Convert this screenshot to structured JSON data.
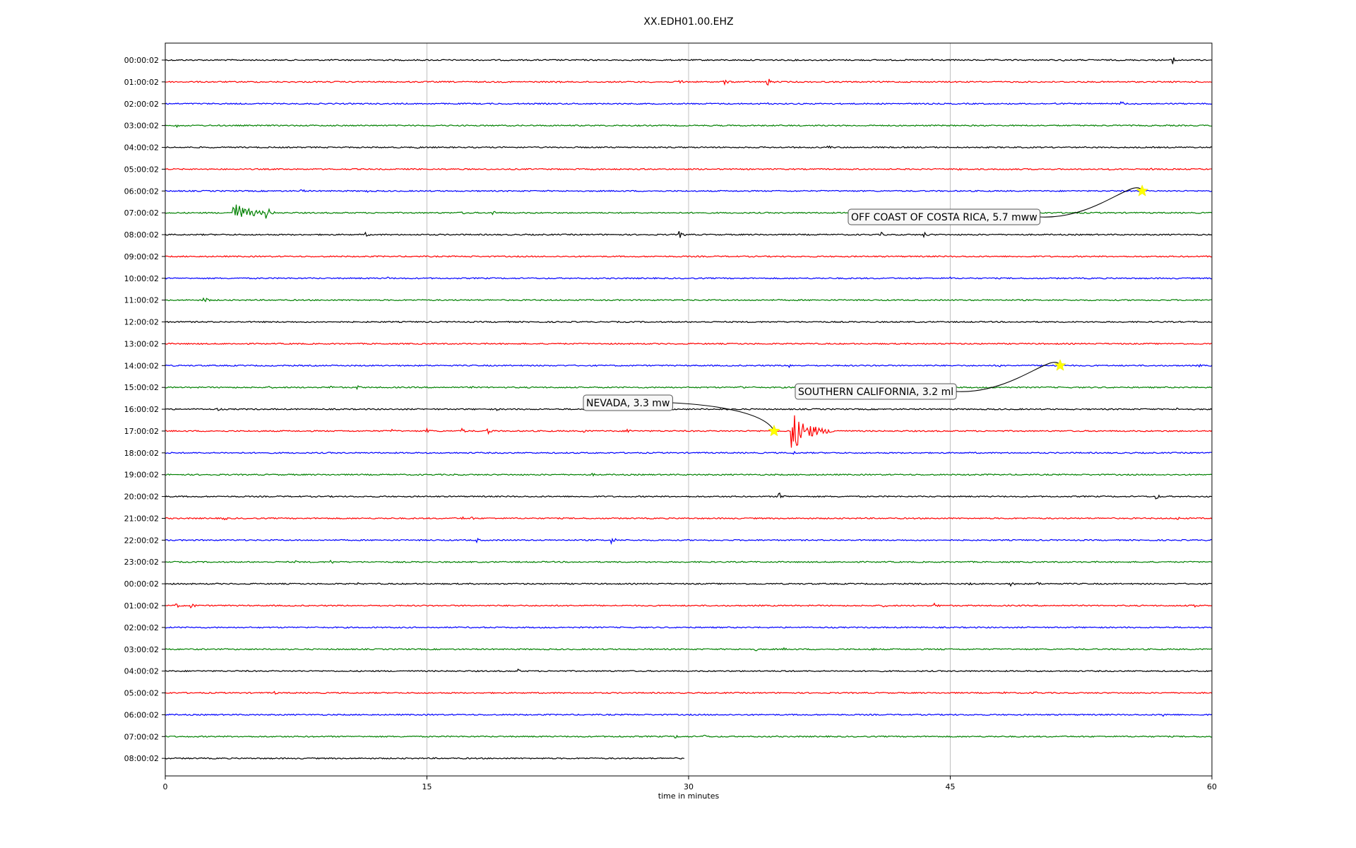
{
  "chart_data": {
    "type": "line",
    "title": "XX.EDH01.00.EHZ",
    "xlabel": "time in minutes",
    "xlim": [
      0,
      60
    ],
    "xticks": [
      0,
      15,
      30,
      45,
      60
    ],
    "grid": "vertical",
    "colors": [
      "#000000",
      "#ff0000",
      "#0000ff",
      "#008000"
    ],
    "rows": [
      {
        "label": "00:00:02",
        "color": "#000000",
        "end": 60,
        "bursts": [
          [
            35.2,
            1
          ],
          [
            44.0,
            3
          ],
          [
            51.5,
            2
          ],
          [
            57.8,
            6
          ]
        ]
      },
      {
        "label": "01:00:02",
        "color": "#ff0000",
        "end": 60,
        "bursts": [
          [
            22.4,
            3
          ],
          [
            29.5,
            4
          ],
          [
            32.0,
            6
          ],
          [
            34.5,
            7
          ],
          [
            29.8,
            2
          ]
        ]
      },
      {
        "label": "02:00:02",
        "color": "#0000ff",
        "end": 60,
        "bursts": [
          [
            34.5,
            2
          ],
          [
            51.0,
            2
          ],
          [
            54.8,
            4
          ]
        ]
      },
      {
        "label": "03:00:02",
        "color": "#008000",
        "end": 60,
        "bursts": [
          [
            0.6,
            3
          ]
        ]
      },
      {
        "label": "04:00:02",
        "color": "#000000",
        "end": 60,
        "bursts": [
          [
            14.5,
            2
          ],
          [
            38.0,
            3
          ]
        ]
      },
      {
        "label": "05:00:02",
        "color": "#ff0000",
        "end": 60,
        "bursts": [
          [
            14.2,
            2
          ],
          [
            45.5,
            3
          ],
          [
            48.5,
            2
          ],
          [
            54.0,
            2
          ],
          [
            56.5,
            3
          ]
        ]
      },
      {
        "label": "06:00:02",
        "color": "#0000ff",
        "end": 60,
        "bursts": [
          [
            7.8,
            3
          ],
          [
            11.5,
            3
          ],
          [
            56.0,
            3
          ]
        ]
      },
      {
        "label": "07:00:02",
        "color": "#008000",
        "end": 60,
        "bursts": [
          [
            3.9,
            16
          ],
          [
            5.8,
            10
          ],
          [
            17.0,
            3
          ],
          [
            18.8,
            4
          ]
        ]
      },
      {
        "label": "08:00:02",
        "color": "#000000",
        "end": 60,
        "bursts": [
          [
            11.5,
            3
          ],
          [
            29.5,
            5
          ],
          [
            34.0,
            2
          ],
          [
            41.0,
            4
          ],
          [
            43.5,
            4
          ]
        ]
      },
      {
        "label": "09:00:02",
        "color": "#ff0000",
        "end": 60,
        "bursts": [
          [
            17.5,
            2
          ],
          [
            49.0,
            2
          ]
        ]
      },
      {
        "label": "10:00:02",
        "color": "#0000ff",
        "end": 60,
        "bursts": [
          [
            12.8,
            2
          ],
          [
            45.0,
            2
          ]
        ]
      },
      {
        "label": "11:00:02",
        "color": "#008000",
        "end": 60,
        "bursts": [
          [
            2.2,
            6
          ],
          [
            35.0,
            2
          ]
        ]
      },
      {
        "label": "12:00:02",
        "color": "#000000",
        "end": 60,
        "bursts": []
      },
      {
        "label": "13:00:02",
        "color": "#ff0000",
        "end": 60,
        "bursts": []
      },
      {
        "label": "14:00:02",
        "color": "#0000ff",
        "end": 60,
        "bursts": [
          [
            35.8,
            3
          ],
          [
            40.5,
            3
          ],
          [
            47.8,
            3
          ],
          [
            51.0,
            3
          ],
          [
            59.3,
            2
          ]
        ]
      },
      {
        "label": "15:00:02",
        "color": "#008000",
        "end": 60,
        "bursts": [
          [
            6.0,
            2
          ],
          [
            9.5,
            3
          ],
          [
            11.0,
            3
          ],
          [
            17.5,
            2
          ],
          [
            33.0,
            3
          ]
        ]
      },
      {
        "label": "16:00:02",
        "color": "#000000",
        "end": 60,
        "bursts": [
          [
            3.0,
            3
          ],
          [
            19.0,
            2
          ],
          [
            58.0,
            2
          ]
        ]
      },
      {
        "label": "17:00:02",
        "color": "#ff0000",
        "end": 60,
        "bursts": [
          [
            13.0,
            3
          ],
          [
            15.0,
            4
          ],
          [
            17.0,
            4
          ],
          [
            18.5,
            5
          ],
          [
            24.0,
            3
          ],
          [
            26.5,
            4
          ],
          [
            35.9,
            30
          ]
        ]
      },
      {
        "label": "18:00:02",
        "color": "#0000ff",
        "end": 60,
        "bursts": [
          [
            36.0,
            3
          ]
        ]
      },
      {
        "label": "19:00:02",
        "color": "#008000",
        "end": 60,
        "bursts": [
          [
            16.5,
            2
          ],
          [
            24.5,
            2
          ],
          [
            46.0,
            2
          ]
        ]
      },
      {
        "label": "20:00:02",
        "color": "#000000",
        "end": 60,
        "bursts": [
          [
            35.2,
            6
          ],
          [
            56.8,
            4
          ]
        ]
      },
      {
        "label": "21:00:02",
        "color": "#ff0000",
        "end": 60,
        "bursts": [
          [
            3.3,
            4
          ],
          [
            17.0,
            3
          ],
          [
            17.5,
            3
          ],
          [
            40.0,
            2
          ],
          [
            58.0,
            3
          ]
        ]
      },
      {
        "label": "22:00:02",
        "color": "#0000ff",
        "end": 60,
        "bursts": [
          [
            17.8,
            4
          ],
          [
            25.6,
            5
          ]
        ]
      },
      {
        "label": "23:00:02",
        "color": "#008000",
        "end": 60,
        "bursts": [
          [
            7.5,
            2
          ],
          [
            9.5,
            3
          ]
        ]
      },
      {
        "label": "00:00:02",
        "color": "#000000",
        "end": 60,
        "bursts": [
          [
            11.0,
            2
          ],
          [
            43.0,
            2
          ],
          [
            46.0,
            3
          ],
          [
            48.5,
            3
          ],
          [
            50.0,
            3
          ]
        ]
      },
      {
        "label": "01:00:02",
        "color": "#ff0000",
        "end": 60,
        "bursts": [
          [
            0.6,
            4
          ],
          [
            1.5,
            4
          ],
          [
            41.2,
            3
          ],
          [
            44.1,
            4
          ],
          [
            59.0,
            4
          ]
        ]
      },
      {
        "label": "02:00:02",
        "color": "#0000ff",
        "end": 60,
        "bursts": []
      },
      {
        "label": "03:00:02",
        "color": "#008000",
        "end": 60,
        "bursts": [
          [
            33.8,
            3
          ],
          [
            35.5,
            2
          ],
          [
            40.5,
            3
          ],
          [
            44.4,
            3
          ]
        ]
      },
      {
        "label": "04:00:02",
        "color": "#000000",
        "end": 60,
        "bursts": [
          [
            20.2,
            3
          ],
          [
            35.5,
            3
          ]
        ]
      },
      {
        "label": "05:00:02",
        "color": "#ff0000",
        "end": 60,
        "bursts": [
          [
            6.2,
            3
          ],
          [
            48.0,
            3
          ],
          [
            49.8,
            3
          ]
        ]
      },
      {
        "label": "06:00:02",
        "color": "#0000ff",
        "end": 60,
        "bursts": [
          [
            57.2,
            4
          ]
        ]
      },
      {
        "label": "07:00:02",
        "color": "#008000",
        "end": 60,
        "bursts": [
          [
            26.0,
            2
          ],
          [
            29.2,
            3
          ],
          [
            30.8,
            4
          ]
        ]
      },
      {
        "label": "08:00:02",
        "color": "#000000",
        "end": 29.8,
        "bursts": []
      }
    ],
    "events": [
      {
        "label": "OFF COAST OF COSTA RICA, 5.7 mww",
        "row": 6,
        "x": 56.0
      },
      {
        "label": "SOUTHERN CALIFORNIA, 3.2 ml",
        "row": 14,
        "x": 51.3
      },
      {
        "label": "NEVADA, 3.3 mw",
        "row": 17,
        "x": 34.9
      }
    ]
  }
}
